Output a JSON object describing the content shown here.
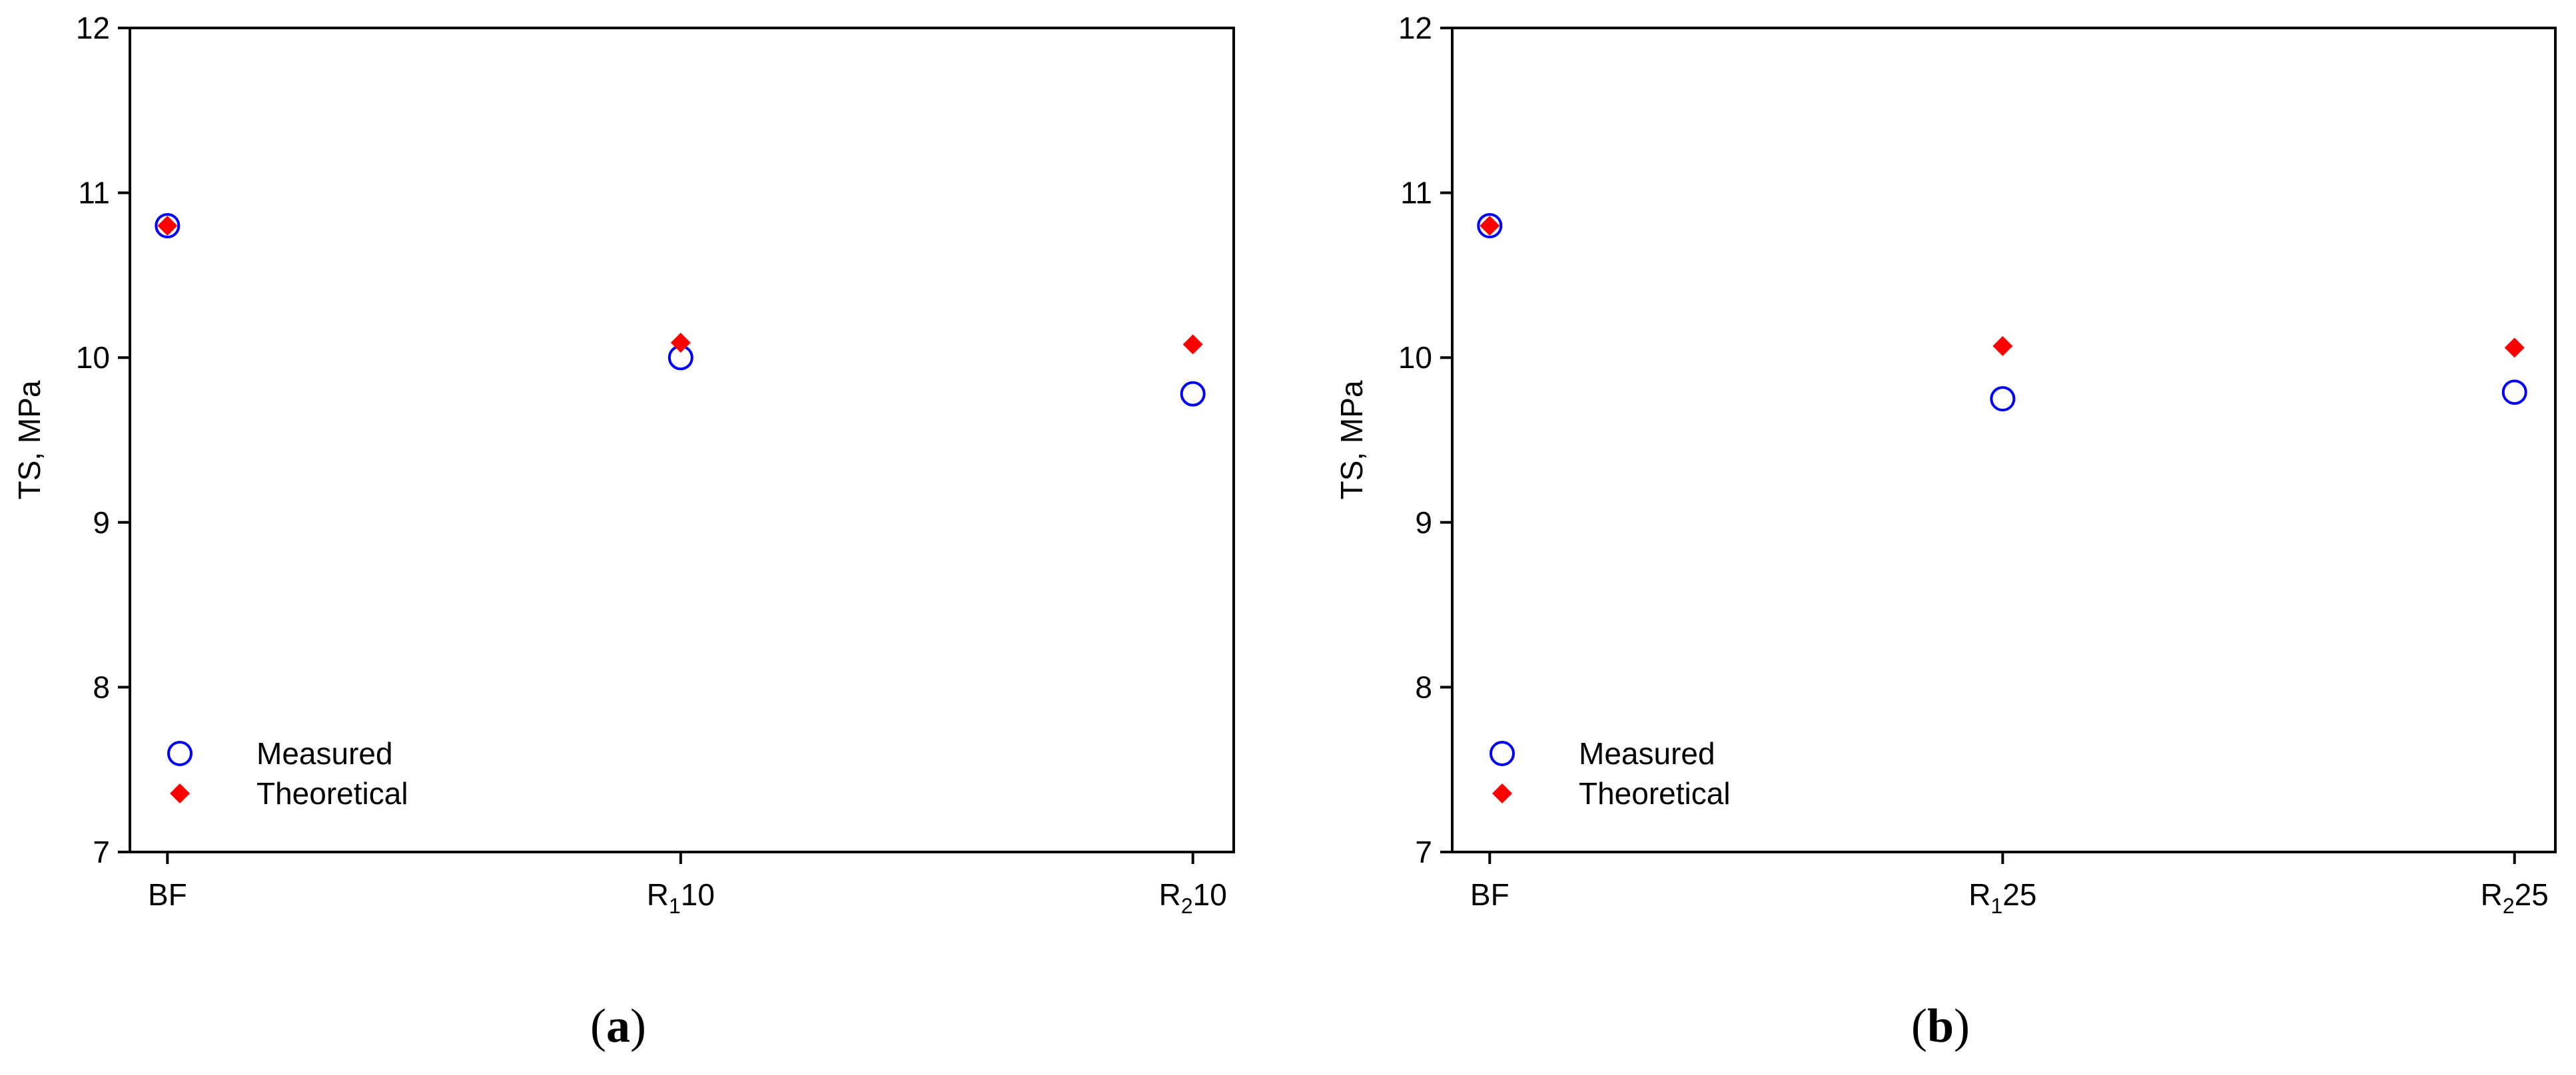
{
  "chart_data": [
    {
      "type": "scatter",
      "panel_label": "a",
      "categories": [
        {
          "base": "R",
          "sub": "",
          "suffix": "",
          "label": "BF",
          "display": "BF"
        },
        {
          "base": "R",
          "sub": "1",
          "suffix": "10",
          "label": "R110"
        },
        {
          "base": "R",
          "sub": "2",
          "suffix": "10",
          "label": "R210"
        }
      ],
      "ylabel": "TS, MPa",
      "ylim": [
        7,
        12
      ],
      "yticks": [
        "7",
        "8",
        "9",
        "10",
        "11",
        "12"
      ],
      "grid": false,
      "legend_position": "bottom-left",
      "series": [
        {
          "name": "Measured",
          "marker": "open-circle",
          "color": "#0000ff",
          "values": [
            10.8,
            10.0,
            9.78
          ]
        },
        {
          "name": "Theoretical",
          "marker": "filled-diamond",
          "color": "#ff0000",
          "values": [
            10.8,
            10.09,
            10.08
          ]
        }
      ]
    },
    {
      "type": "scatter",
      "panel_label": "b",
      "categories": [
        {
          "base": "R",
          "sub": "",
          "suffix": "",
          "label": "BF",
          "display": "BF"
        },
        {
          "base": "R",
          "sub": "1",
          "suffix": "25",
          "label": "R125"
        },
        {
          "base": "R",
          "sub": "2",
          "suffix": "25",
          "label": "R225"
        }
      ],
      "ylabel": "TS, MPa",
      "ylim": [
        7,
        12
      ],
      "yticks": [
        "7",
        "8",
        "9",
        "10",
        "11",
        "12"
      ],
      "grid": false,
      "legend_position": "bottom-left",
      "series": [
        {
          "name": "Measured",
          "marker": "open-circle",
          "color": "#0000ff",
          "values": [
            10.8,
            9.75,
            9.79
          ]
        },
        {
          "name": "Theoretical",
          "marker": "filled-diamond",
          "color": "#ff0000",
          "values": [
            10.8,
            10.07,
            10.06
          ]
        }
      ]
    }
  ]
}
